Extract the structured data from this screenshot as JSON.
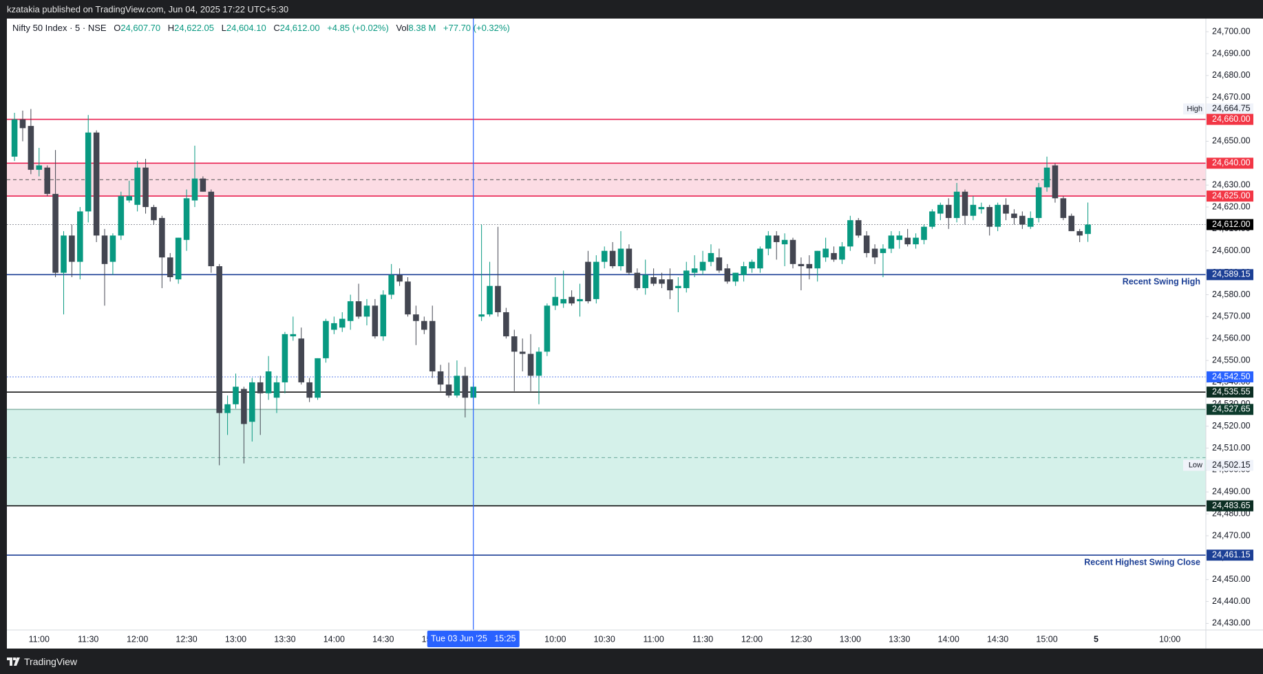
{
  "header": {
    "published": "kzatakia published on TradingView.com, Jun 04, 2025 17:22 UTC+5:30",
    "brand": "TradingView"
  },
  "chart_data": {
    "type": "candlestick",
    "title": "Nifty 50 Index · 5 · NSE",
    "ohlc_legend": [
      {
        "key": "O",
        "value": "24,607.70"
      },
      {
        "key": "H",
        "value": "24,622.05"
      },
      {
        "key": "L",
        "value": "24,604.10"
      },
      {
        "key": "C",
        "value": "24,612.00"
      }
    ],
    "change": "+4.85 (+0.02%)",
    "volume": {
      "key": "Vol",
      "value": "8.38 M",
      "change": "+77.70 (+0.32%)"
    },
    "up_color": "#089981",
    "down_color": "#434651",
    "xlim": [
      -0.93,
      145.4
    ],
    "xticks": [
      {
        "value": 3,
        "label": "11:00"
      },
      {
        "value": 9,
        "label": "11:30"
      },
      {
        "value": 15,
        "label": "12:00"
      },
      {
        "value": 21,
        "label": "12:30"
      },
      {
        "value": 27,
        "label": "13:00"
      },
      {
        "value": 33,
        "label": "13:30"
      },
      {
        "value": 39,
        "label": "14:00"
      },
      {
        "value": 45,
        "label": "14:30"
      },
      {
        "value": 51,
        "label": "15:00"
      },
      {
        "value": 66,
        "label": "10:00"
      },
      {
        "value": 72,
        "label": "10:30"
      },
      {
        "value": 78,
        "label": "11:00"
      },
      {
        "value": 84,
        "label": "11:30"
      },
      {
        "value": 90,
        "label": "12:00"
      },
      {
        "value": 96,
        "label": "12:30"
      },
      {
        "value": 102,
        "label": "13:00"
      },
      {
        "value": 108,
        "label": "13:30"
      },
      {
        "value": 114,
        "label": "14:00"
      },
      {
        "value": 120,
        "label": "14:30"
      },
      {
        "value": 126,
        "label": "15:00"
      },
      {
        "value": 132,
        "label": "5",
        "bold": true
      },
      {
        "value": 141,
        "label": "10:00"
      }
    ],
    "ylim": [
      24427,
      24706
    ],
    "yticks": [
      {
        "value": 24430,
        "label": "24,430.00"
      },
      {
        "value": 24440,
        "label": "24,440.00"
      },
      {
        "value": 24450,
        "label": "24,450.00"
      },
      {
        "value": 24460,
        "label": "24,460.00"
      },
      {
        "value": 24470,
        "label": "24,470.00"
      },
      {
        "value": 24480,
        "label": "24,480.00"
      },
      {
        "value": 24490,
        "label": "24,490.00"
      },
      {
        "value": 24500,
        "label": "24,500.00"
      },
      {
        "value": 24510,
        "label": "24,510.00"
      },
      {
        "value": 24520,
        "label": "24,520.00"
      },
      {
        "value": 24530,
        "label": "24,530.00"
      },
      {
        "value": 24540,
        "label": "24,540.00"
      },
      {
        "value": 24550,
        "label": "24,550.00"
      },
      {
        "value": 24560,
        "label": "24,560.00"
      },
      {
        "value": 24570,
        "label": "24,570.00"
      },
      {
        "value": 24580,
        "label": "24,580.00"
      },
      {
        "value": 24590,
        "label": "24,590.00"
      },
      {
        "value": 24600,
        "label": "24,600.00"
      },
      {
        "value": 24610,
        "label": "24,610.00"
      },
      {
        "value": 24620,
        "label": "24,620.00"
      },
      {
        "value": 24630,
        "label": "24,630.00"
      },
      {
        "value": 24640,
        "label": "24,640.00"
      },
      {
        "value": 24650,
        "label": "24,650.00"
      },
      {
        "value": 24660,
        "label": "24,660.00"
      },
      {
        "value": 24670,
        "label": "24,670.00"
      },
      {
        "value": 24680,
        "label": "24,680.00"
      },
      {
        "value": 24690,
        "label": "24,690.00"
      },
      {
        "value": 24700,
        "label": "24,700.00"
      }
    ],
    "zones": [
      {
        "from": 24625,
        "to": 24640,
        "fill": "#fcdce4"
      },
      {
        "from": 24483.65,
        "to": 24527.65,
        "fill": "#d5f1ea"
      }
    ],
    "levels": [
      {
        "value": 24660,
        "label": "24,660.00",
        "color": "#f23645",
        "line_color": "#e91e4f",
        "style": "solid"
      },
      {
        "value": 24640,
        "label": "24,640.00",
        "color": "#f23645",
        "line_color": "#e91e4f",
        "style": "solid"
      },
      {
        "value": 24625,
        "label": "24,625.00",
        "color": "#f23645",
        "line_color": "#e91e4f",
        "style": "solid"
      },
      {
        "value": 24612,
        "label": "24,612.00",
        "color": "#000000",
        "line_color": "#9598a1",
        "style": "dotted"
      },
      {
        "value": 24589.15,
        "label": "24,589.15",
        "color": "#1c3f95",
        "line_color": "#1c3f95",
        "style": "solid",
        "text": "Recent Swing High"
      },
      {
        "value": 24542.5,
        "label": "24,542.50",
        "color": "#2962ff",
        "line_color": "#5b7fe8",
        "style": "dotted"
      },
      {
        "value": 24535.55,
        "label": "24,535.55",
        "color": "#0c2e23",
        "line_color": "#000000",
        "style": "solid"
      },
      {
        "value": 24527.65,
        "label": "24,527.65",
        "color": "#0c3b2c",
        "line_color": "#8fb8ad",
        "style": "solid"
      },
      {
        "value": 24483.65,
        "label": "24,483.65",
        "color": "#0c2e23",
        "line_color": "#000000",
        "style": "solid"
      },
      {
        "value": 24461.15,
        "label": "24,461.15",
        "color": "#1c3f95",
        "line_color": "#1c3f95",
        "style": "solid",
        "text": "Recent Highest Swing Close"
      }
    ],
    "markers": [
      {
        "value": 24664.75,
        "label": "24,664.75",
        "text": "High"
      },
      {
        "value": 24502.15,
        "label": "24,502.15",
        "text": "Low"
      }
    ],
    "crosshair": {
      "x": 56,
      "label": "Tue 03 Jun '25   15:25"
    },
    "candles": [
      [
        24643,
        24663,
        24641,
        24660
      ],
      [
        24660,
        24664,
        24650,
        24656
      ],
      [
        24657,
        24664.75,
        24635,
        24637
      ],
      [
        24637,
        24647,
        24634,
        24639
      ],
      [
        24638,
        24639,
        24625,
        24626
      ],
      [
        24626,
        24646,
        24588,
        24590
      ],
      [
        24590,
        24609,
        24571,
        24607
      ],
      [
        24607,
        24612,
        24588,
        24595
      ],
      [
        24595,
        24620,
        24587,
        24618
      ],
      [
        24618,
        24662,
        24613,
        24654
      ],
      [
        24654,
        24655,
        24604,
        24607
      ],
      [
        24607,
        24610,
        24575,
        24594
      ],
      [
        24595,
        24608,
        24589,
        24607
      ],
      [
        24607,
        24627,
        24605,
        24625
      ],
      [
        24623,
        24632,
        24622,
        24625
      ],
      [
        24621,
        24641,
        24618,
        24638
      ],
      [
        24638,
        24642,
        24617,
        24620
      ],
      [
        24620,
        24621,
        24612,
        24614
      ],
      [
        24615,
        24616,
        24583,
        24597
      ],
      [
        24597,
        24599,
        24586,
        24588
      ],
      [
        24587,
        24606,
        24585,
        24606
      ],
      [
        24605,
        24628,
        24600,
        24624
      ],
      [
        24623,
        24648,
        24620,
        24633
      ],
      [
        24633,
        24634,
        24627,
        24627
      ],
      [
        24627,
        24628,
        24590,
        24593
      ],
      [
        24593,
        24594,
        24502.15,
        24526
      ],
      [
        24526,
        24534,
        24516,
        24530
      ],
      [
        24530,
        24544,
        24528,
        24538
      ],
      [
        24537,
        24538,
        24503,
        24521
      ],
      [
        24522,
        24542,
        24513,
        24540
      ],
      [
        24540,
        24543,
        24516,
        24535
      ],
      [
        24535,
        24552,
        24532,
        24545
      ],
      [
        24533,
        24543,
        24526,
        24540
      ],
      [
        24540,
        24563,
        24535,
        24562
      ],
      [
        24561,
        24570,
        24559,
        24562
      ],
      [
        24560,
        24565,
        24539,
        24540
      ],
      [
        24540,
        24542,
        24531,
        24533
      ],
      [
        24533,
        24551,
        24532,
        24551
      ],
      [
        24551,
        24569,
        24549,
        24568
      ],
      [
        24564,
        24570,
        24562,
        24567
      ],
      [
        24565,
        24572,
        24563,
        24569
      ],
      [
        24568,
        24580,
        24564,
        24577
      ],
      [
        24577,
        24585,
        24569,
        24570
      ],
      [
        24570,
        24578,
        24566,
        24575
      ],
      [
        24575,
        24578,
        24560,
        24561
      ],
      [
        24561,
        24582,
        24559,
        24580
      ],
      [
        24580,
        24594,
        24578,
        24589
      ],
      [
        24589,
        24592,
        24584,
        24586
      ],
      [
        24586,
        24588,
        24570,
        24571
      ],
      [
        24571,
        24575,
        24557,
        24568
      ],
      [
        24568,
        24570,
        24562,
        24564
      ],
      [
        24568,
        24575,
        24542,
        24545
      ],
      [
        24545,
        24548,
        24536,
        24539
      ],
      [
        24539,
        24549,
        24533,
        24534
      ],
      [
        24534,
        24550,
        24533,
        24543
      ],
      [
        24543,
        24547,
        24524,
        24533
      ],
      [
        24533,
        24540,
        24528,
        24538
      ],
      [
        24570,
        24612,
        24568,
        24571
      ],
      [
        24571,
        24595,
        24570,
        24584
      ],
      [
        24584,
        24611,
        24570,
        24572
      ],
      [
        24572,
        24574,
        24560,
        24561
      ],
      [
        24561,
        24564,
        24536,
        24554
      ],
      [
        24554,
        24560,
        24545,
        24553
      ],
      [
        24553,
        24562,
        24536,
        24543
      ],
      [
        24543,
        24556,
        24530,
        24554
      ],
      [
        24554,
        24576,
        24552,
        24575
      ],
      [
        24575,
        24588,
        24573,
        24579
      ],
      [
        24576,
        24591,
        24574,
        24578
      ],
      [
        24579,
        24582,
        24575,
        24576
      ],
      [
        24577,
        24585,
        24570,
        24578
      ],
      [
        24595,
        24600,
        24576,
        24577
      ],
      [
        24578,
        24598,
        24576,
        24595
      ],
      [
        24595,
        24602,
        24592,
        24600
      ],
      [
        24600,
        24604,
        24592,
        24593
      ],
      [
        24593,
        24609,
        24591,
        24601
      ],
      [
        24601,
        24603,
        24589,
        24590
      ],
      [
        24590,
        24592,
        24582,
        24583
      ],
      [
        24583,
        24596,
        24580,
        24589
      ],
      [
        24588,
        24592,
        24584,
        24585
      ],
      [
        24587,
        24590,
        24583,
        24585
      ],
      [
        24587,
        24592,
        24578,
        24582
      ],
      [
        24583,
        24588,
        24572,
        24584
      ],
      [
        24583,
        24595,
        24581,
        24591
      ],
      [
        24590,
        24598,
        24588,
        24592
      ],
      [
        24591,
        24600,
        24589,
        24595
      ],
      [
        24595,
        24603,
        24593,
        24599
      ],
      [
        24597,
        24601,
        24590,
        24591
      ],
      [
        24592,
        24594,
        24585,
        24586
      ],
      [
        24586,
        24590,
        24584,
        24590
      ],
      [
        24589,
        24595,
        24586,
        24593
      ],
      [
        24592,
        24596,
        24590,
        24595
      ],
      [
        24592,
        24602,
        24590,
        24601
      ],
      [
        24601,
        24609,
        24598,
        24607
      ],
      [
        24607,
        24609,
        24596,
        24604
      ],
      [
        24603,
        24608,
        24593,
        24605
      ],
      [
        24605,
        24606,
        24592,
        24594
      ],
      [
        24594,
        24597,
        24582,
        24593
      ],
      [
        24594,
        24598,
        24587,
        24592
      ],
      [
        24592,
        24600,
        24586,
        24600
      ],
      [
        24597,
        24606,
        24595,
        24601
      ],
      [
        24599,
        24602,
        24595,
        24596
      ],
      [
        24596,
        24604,
        24594,
        24602
      ],
      [
        24602,
        24616,
        24600,
        24614
      ],
      [
        24614,
        24615,
        24606,
        24607
      ],
      [
        24607,
        24609,
        24597,
        24599
      ],
      [
        24601,
        24603,
        24594,
        24597
      ],
      [
        24599,
        24603,
        24588,
        24601
      ],
      [
        24601,
        24609,
        24599,
        24607
      ],
      [
        24605,
        24609,
        24601,
        24607
      ],
      [
        24606,
        24610,
        24602,
        24603
      ],
      [
        24603,
        24608,
        24601,
        24606
      ],
      [
        24605,
        24612,
        24603,
        24611
      ],
      [
        24611,
        24619,
        24610,
        24618
      ],
      [
        24617,
        24622,
        24614,
        24621
      ],
      [
        24621,
        24624,
        24610,
        24615
      ],
      [
        24615,
        24631,
        24613,
        24627
      ],
      [
        24627,
        24628,
        24612,
        24616
      ],
      [
        24616,
        24625,
        24614,
        24621
      ],
      [
        24619,
        24622,
        24617,
        24620
      ],
      [
        24620,
        24621,
        24607,
        24611
      ],
      [
        24611,
        24622,
        24609,
        24621
      ],
      [
        24621,
        24624,
        24614,
        24617
      ],
      [
        24617,
        24619,
        24612,
        24615
      ],
      [
        24616,
        24618,
        24610,
        24612
      ],
      [
        24611,
        24618,
        24610,
        24615
      ],
      [
        24615,
        24631,
        24613,
        24629
      ],
      [
        24629,
        24643,
        24627,
        24638
      ],
      [
        24639,
        24640,
        24622,
        24624
      ],
      [
        24624,
        24625,
        24614,
        24615
      ],
      [
        24616,
        24617,
        24609,
        24609
      ],
      [
        24609,
        24610,
        24604,
        24607
      ],
      [
        24607.7,
        24622.05,
        24604.1,
        24612
      ]
    ]
  }
}
